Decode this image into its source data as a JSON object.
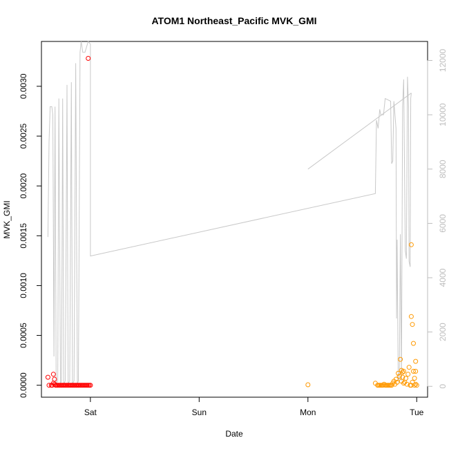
{
  "chart_data": {
    "type": "scatter",
    "title": "ATOM1 Northeast_Pacific MVK_GMI",
    "xlabel": "Date",
    "ylabel": "MVK_GMI",
    "x_unit": "days",
    "xlim": [
      -0.45,
      3.1
    ],
    "ylim_left": [
      -0.00012,
      0.00345
    ],
    "ylim_right": [
      -400,
      12700
    ],
    "x_ticks": [
      {
        "value": 0,
        "label": "Sat"
      },
      {
        "value": 1,
        "label": "Sun"
      },
      {
        "value": 2,
        "label": "Mon"
      },
      {
        "value": 3,
        "label": "Tue"
      }
    ],
    "y_ticks_left": [
      {
        "value": 0.0,
        "label": "0.0000"
      },
      {
        "value": 0.0005,
        "label": "0.0005"
      },
      {
        "value": 0.001,
        "label": "0.0010"
      },
      {
        "value": 0.0015,
        "label": "0.0015"
      },
      {
        "value": 0.002,
        "label": "0.0020"
      },
      {
        "value": 0.0025,
        "label": "0.0025"
      },
      {
        "value": 0.003,
        "label": "0.0030"
      }
    ],
    "y_ticks_right": [
      {
        "value": 0,
        "label": "0"
      },
      {
        "value": 2000,
        "label": "2000"
      },
      {
        "value": 4000,
        "label": "4000"
      },
      {
        "value": 6000,
        "label": "6000"
      },
      {
        "value": 8000,
        "label": "8000"
      },
      {
        "value": 10000,
        "label": "10000"
      },
      {
        "value": 12000,
        "label": "12000"
      }
    ],
    "colors": {
      "series_red": "#ff0000",
      "series_orange": "#ff9900",
      "altitude_line": "#c8c8c8",
      "axis": "#000000",
      "right_axis": "#bdbdbd"
    },
    "series": [
      {
        "color": "#ff0000",
        "points": [
          [
            -0.39,
            8e-05
          ],
          [
            -0.38,
            0.0
          ],
          [
            -0.36,
            0.0
          ],
          [
            -0.35,
            0.0
          ],
          [
            -0.34,
            2e-05
          ],
          [
            -0.34,
            0.00011
          ],
          [
            -0.33,
            6e-05
          ],
          [
            -0.33,
            1e-05
          ],
          [
            -0.32,
            0.0
          ],
          [
            -0.31,
            0.0
          ],
          [
            -0.3,
            0.0
          ],
          [
            -0.29,
            0.0
          ],
          [
            -0.28,
            0.0
          ],
          [
            -0.27,
            0.0
          ],
          [
            -0.26,
            0.0
          ],
          [
            -0.25,
            0.0
          ],
          [
            -0.24,
            0.0
          ],
          [
            -0.23,
            0.0
          ],
          [
            -0.22,
            0.0
          ],
          [
            -0.21,
            0.0
          ],
          [
            -0.2,
            0.0
          ],
          [
            -0.19,
            0.0
          ],
          [
            -0.18,
            0.0
          ],
          [
            -0.17,
            0.0
          ],
          [
            -0.16,
            0.0
          ],
          [
            -0.15,
            0.0
          ],
          [
            -0.14,
            0.0
          ],
          [
            -0.13,
            0.0
          ],
          [
            -0.12,
            0.0
          ],
          [
            -0.11,
            0.0
          ],
          [
            -0.1,
            0.0
          ],
          [
            -0.09,
            0.0
          ],
          [
            -0.08,
            0.0
          ],
          [
            -0.07,
            0.0
          ],
          [
            -0.06,
            0.0
          ],
          [
            -0.05,
            0.0
          ],
          [
            -0.04,
            0.0
          ],
          [
            -0.03,
            0.0
          ],
          [
            -0.02,
            0.0
          ],
          [
            -0.01,
            0.0
          ],
          [
            0.0,
            0.0
          ],
          [
            -0.02,
            0.00328
          ]
        ]
      },
      {
        "color": "#ff9900",
        "points": [
          [
            2.0,
            5e-06
          ],
          [
            2.62,
            2e-05
          ],
          [
            2.64,
            0.0
          ],
          [
            2.65,
            0.0
          ],
          [
            2.66,
            0.0
          ],
          [
            2.67,
            0.0
          ],
          [
            2.68,
            0.0
          ],
          [
            2.69,
            0.0
          ],
          [
            2.7,
            1e-05
          ],
          [
            2.71,
            0.0
          ],
          [
            2.72,
            0.0
          ],
          [
            2.73,
            0.0
          ],
          [
            2.74,
            0.0
          ],
          [
            2.75,
            0.0
          ],
          [
            2.76,
            0.0
          ],
          [
            2.77,
            0.0
          ],
          [
            2.78,
            2e-05
          ],
          [
            2.79,
            4e-05
          ],
          [
            2.8,
            1e-05
          ],
          [
            2.81,
            6e-05
          ],
          [
            2.82,
            3e-05
          ],
          [
            2.83,
            0.00012
          ],
          [
            2.84,
            9e-05
          ],
          [
            2.85,
            0.00026
          ],
          [
            2.86,
            0.00015
          ],
          [
            2.86,
            4e-05
          ],
          [
            2.87,
            0.00013
          ],
          [
            2.87,
            8e-05
          ],
          [
            2.88,
            0.00014
          ],
          [
            2.88,
            2e-05
          ],
          [
            2.89,
            3e-05
          ],
          [
            2.9,
            7e-05
          ],
          [
            2.91,
            1e-05
          ],
          [
            2.92,
            0.00011
          ],
          [
            2.93,
            0.00018
          ],
          [
            2.94,
            0.0
          ],
          [
            2.95,
            0.0
          ],
          [
            2.95,
            0.00141
          ],
          [
            2.95,
            0.00069
          ],
          [
            2.96,
            0.00061
          ],
          [
            2.96,
            3e-05
          ],
          [
            2.97,
            0.00042
          ],
          [
            2.97,
            0.00014
          ],
          [
            2.98,
            7e-05
          ],
          [
            2.98,
            0.0
          ],
          [
            2.99,
            0.00024
          ],
          [
            2.99,
            0.00014
          ],
          [
            2.99,
            1e-05
          ],
          [
            3.0,
            0.0
          ]
        ]
      }
    ],
    "secondary_line": {
      "axis": "right",
      "color": "#c8c8c8",
      "segments": [
        [
          [
            -0.39,
            5500
          ],
          [
            -0.38,
            9000
          ],
          [
            -0.37,
            10300
          ],
          [
            -0.355,
            10300
          ],
          [
            -0.345,
            10000
          ],
          [
            -0.335,
            1100
          ],
          [
            -0.325,
            10300
          ],
          [
            -0.315,
            100
          ],
          [
            -0.3,
            200
          ],
          [
            -0.29,
            10600
          ],
          [
            -0.275,
            100
          ],
          [
            -0.265,
            200
          ],
          [
            -0.255,
            10600
          ],
          [
            -0.245,
            100
          ],
          [
            -0.23,
            200
          ],
          [
            -0.215,
            11100
          ],
          [
            -0.205,
            100
          ],
          [
            -0.19,
            200
          ],
          [
            -0.175,
            11200
          ],
          [
            -0.165,
            100
          ],
          [
            -0.15,
            200
          ],
          [
            -0.135,
            11900
          ],
          [
            -0.12,
            100
          ],
          [
            -0.11,
            200
          ],
          [
            -0.095,
            12300
          ],
          [
            -0.085,
            12700
          ],
          [
            -0.07,
            12300
          ],
          [
            -0.05,
            12300
          ],
          [
            -0.02,
            12700
          ],
          [
            0.0,
            12600
          ],
          [
            0.0,
            4800
          ],
          [
            2.62,
            7100
          ],
          [
            2.63,
            9800
          ],
          [
            2.645,
            9500
          ],
          [
            2.66,
            10200
          ],
          [
            2.67,
            10000
          ],
          [
            2.685,
            10000
          ],
          [
            2.695,
            10000
          ],
          [
            2.71,
            10600
          ],
          [
            2.76,
            10500
          ],
          [
            2.77,
            8200
          ],
          [
            2.78,
            8300
          ],
          [
            2.79,
            10500
          ],
          [
            2.81,
            9500
          ],
          [
            2.815,
            2500
          ],
          [
            2.82,
            5400
          ],
          [
            2.83,
            200
          ],
          [
            2.84,
            300
          ],
          [
            2.85,
            5600
          ],
          [
            2.86,
            200
          ],
          [
            2.87,
            10300
          ],
          [
            2.88,
            11300
          ],
          [
            2.895,
            5000
          ],
          [
            2.905,
            4700
          ],
          [
            2.915,
            11400
          ],
          [
            2.925,
            10300
          ],
          [
            2.93,
            4600
          ],
          [
            2.94,
            4400
          ],
          [
            2.945,
            10600
          ],
          [
            2.95,
            10800
          ]
        ],
        [
          [
            2.0,
            8000
          ],
          [
            2.95,
            10800
          ]
        ]
      ]
    }
  }
}
